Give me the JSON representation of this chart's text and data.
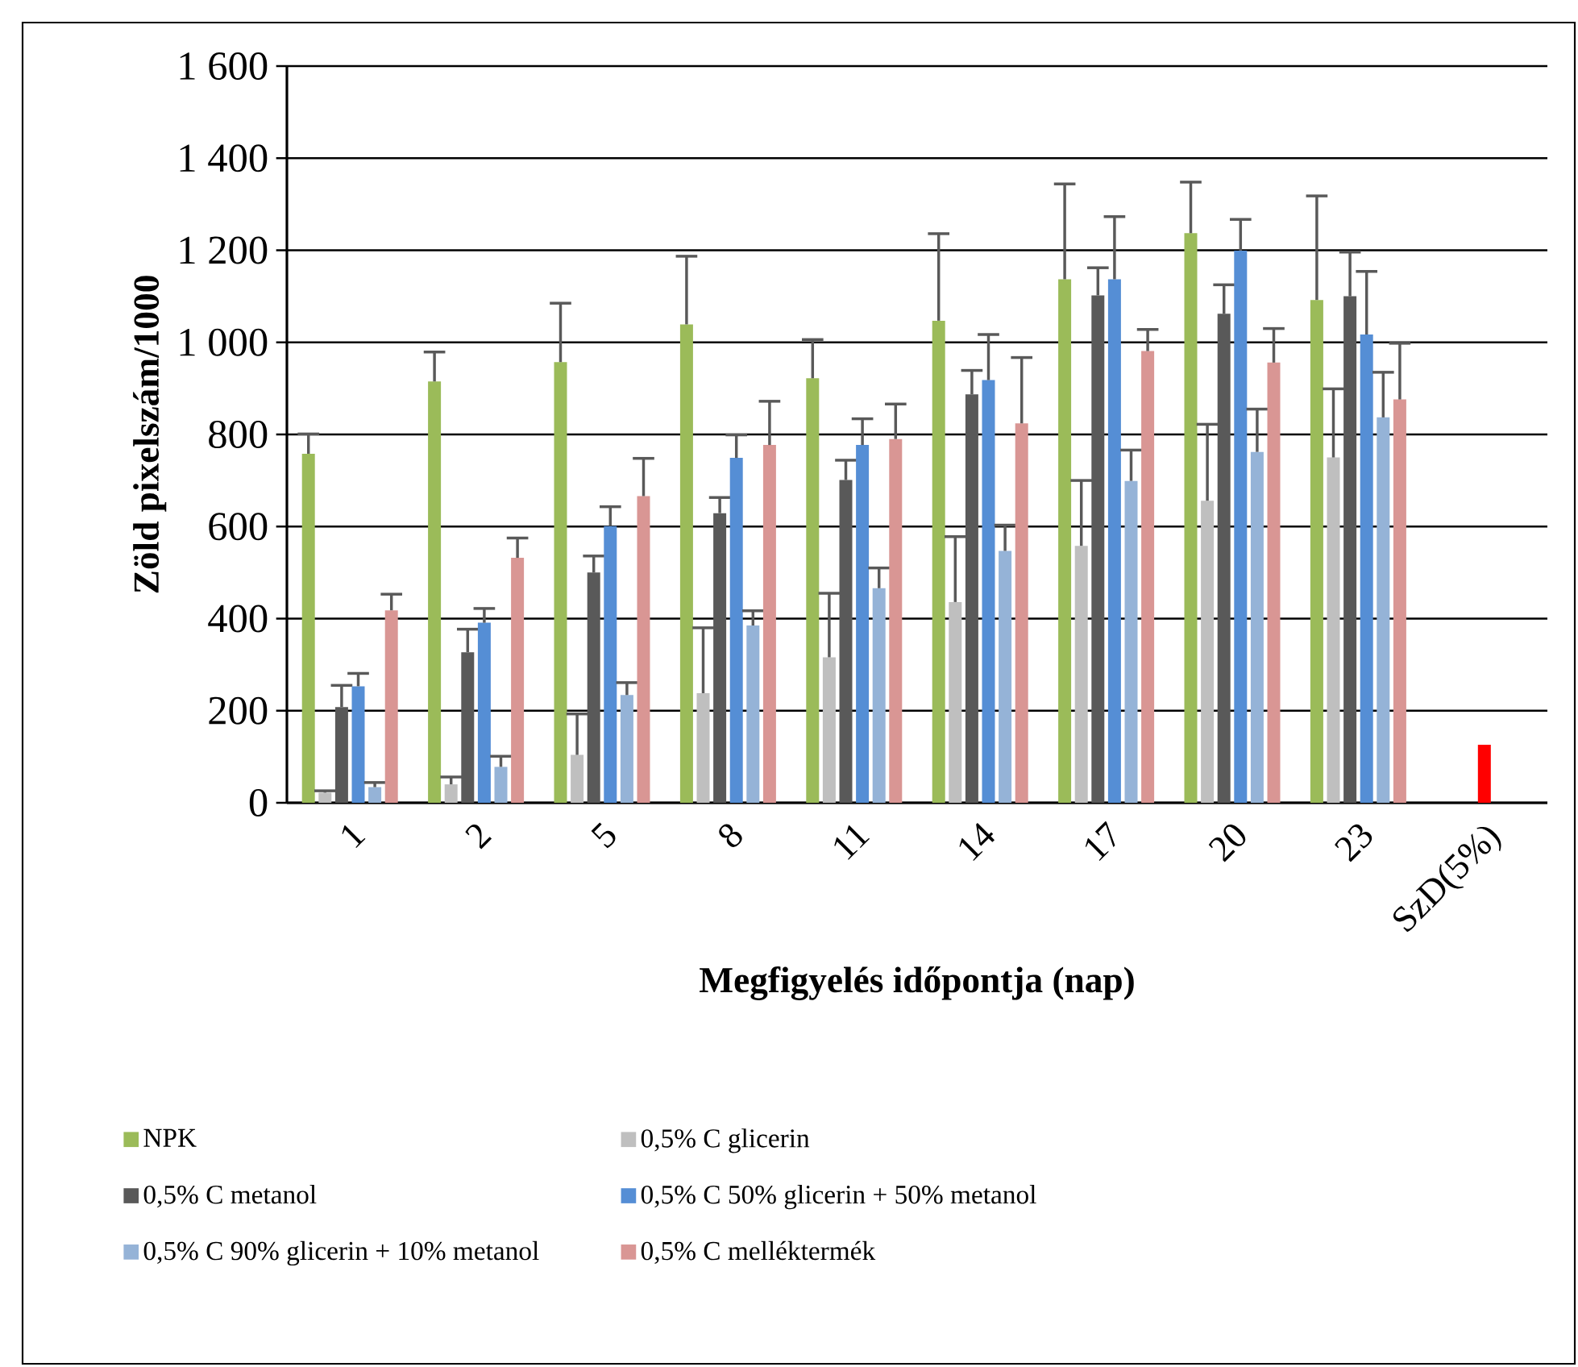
{
  "chart_data": {
    "type": "bar",
    "xlabel": "Megfigyelés időpontja (nap)",
    "ylabel": "Zöld pixelszám/1000",
    "categories": [
      "1",
      "2",
      "5",
      "8",
      "11",
      "14",
      "17",
      "20",
      "23",
      "SzD(5%)"
    ],
    "ylim": [
      0,
      1600
    ],
    "yticks": [
      0,
      200,
      400,
      600,
      800,
      {
        "value": 1000,
        "label": "1 000"
      },
      {
        "value": 1200,
        "label": "1 200"
      },
      {
        "value": 1400,
        "label": "1 400"
      },
      {
        "value": 1600,
        "label": "1 600"
      }
    ],
    "grid": "y",
    "legend": "bottom",
    "series": [
      {
        "name": "NPK",
        "color": "#9bbb59",
        "values": [
          758,
          915,
          957,
          1039,
          922,
          1047,
          1137,
          1237,
          1092,
          null
        ],
        "errors": [
          [
            758,
            801
          ],
          [
            915,
            979
          ],
          [
            957,
            1085
          ],
          [
            1039,
            1187
          ],
          [
            922,
            1006
          ],
          [
            1047,
            1236
          ],
          [
            1137,
            1344
          ],
          [
            1237,
            1348
          ],
          [
            1092,
            1318
          ],
          null
        ]
      },
      {
        "name": "0,5% C glicerin",
        "color": "#bfbfbf",
        "values": [
          22,
          40,
          104,
          238,
          316,
          436,
          558,
          656,
          750,
          null
        ],
        "errors": [
          [
            22,
            26
          ],
          [
            40,
            56
          ],
          [
            104,
            193
          ],
          [
            238,
            380
          ],
          [
            316,
            455
          ],
          [
            436,
            578
          ],
          [
            558,
            700
          ],
          [
            656,
            822
          ],
          [
            750,
            899
          ],
          null
        ]
      },
      {
        "name": "0,5% C metanol",
        "color": "#595959",
        "values": [
          208,
          327,
          500,
          629,
          701,
          887,
          1102,
          1062,
          1100,
          null
        ],
        "errors": [
          [
            208,
            255
          ],
          [
            327,
            377
          ],
          [
            500,
            536
          ],
          [
            629,
            663
          ],
          [
            701,
            744
          ],
          [
            887,
            939
          ],
          [
            1102,
            1162
          ],
          [
            1062,
            1125
          ],
          [
            1100,
            1196
          ],
          null
        ]
      },
      {
        "name": "0,5% C 50% glicerin + 50% metanol",
        "color": "#558ed5",
        "values": [
          253,
          391,
          601,
          749,
          777,
          918,
          1137,
          1199,
          1017,
          null
        ],
        "errors": [
          [
            253,
            281
          ],
          [
            391,
            422
          ],
          [
            601,
            643
          ],
          [
            749,
            799
          ],
          [
            777,
            834
          ],
          [
            918,
            1017
          ],
          [
            1137,
            1273
          ],
          [
            1199,
            1267
          ],
          [
            1017,
            1154
          ],
          null
        ]
      },
      {
        "name": "0,5% C 90% glicerin + 10% metanol",
        "color": "#95b3d7",
        "values": [
          34,
          78,
          234,
          385,
          466,
          547,
          699,
          762,
          837,
          null
        ],
        "errors": [
          [
            34,
            44
          ],
          [
            78,
            101
          ],
          [
            234,
            261
          ],
          [
            385,
            417
          ],
          [
            466,
            510
          ],
          [
            547,
            603
          ],
          [
            699,
            766
          ],
          [
            762,
            855
          ],
          [
            837,
            935
          ],
          null
        ]
      },
      {
        "name": "0,5% C melléktermék",
        "color": "#d99694",
        "values": [
          418,
          532,
          666,
          777,
          790,
          824,
          981,
          956,
          876,
          null
        ],
        "errors": [
          [
            418,
            453
          ],
          [
            532,
            575
          ],
          [
            666,
            748
          ],
          [
            777,
            872
          ],
          [
            790,
            866
          ],
          [
            824,
            967
          ],
          [
            981,
            1028
          ],
          [
            956,
            1030
          ],
          [
            876,
            998
          ],
          null
        ]
      },
      {
        "color": "#ff0000",
        "values": [
          null,
          null,
          null,
          null,
          null,
          null,
          null,
          null,
          null,
          126
        ]
      }
    ]
  }
}
